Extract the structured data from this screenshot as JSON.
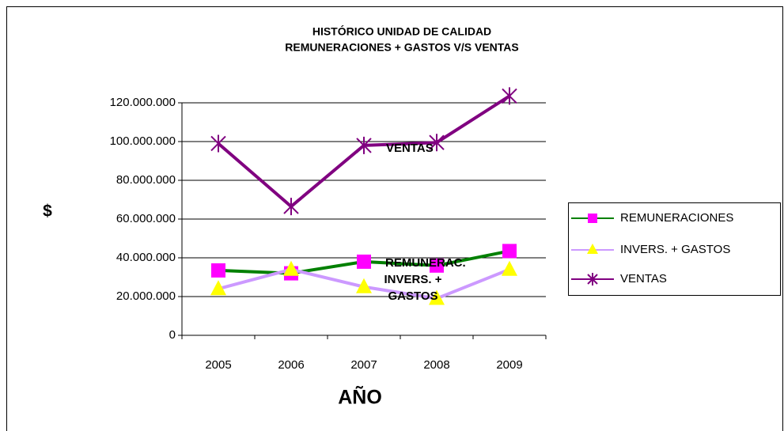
{
  "chart_data": {
    "type": "line",
    "title": [
      "HISTÓRICO UNIDAD DE CALIDAD",
      "REMUNERACIONES + GASTOS V/S VENTAS"
    ],
    "y_label": "$",
    "x_label": "AÑO",
    "categories": [
      "2005",
      "2006",
      "2007",
      "2008",
      "2009"
    ],
    "series": [
      {
        "name": "REMUNERACIONES",
        "color": "#008000",
        "marker": "square",
        "marker_color": "#ff00ff",
        "values": [
          33500000,
          32000000,
          38000000,
          36000000,
          43500000
        ]
      },
      {
        "name": "INVERS. + GASTOS",
        "color": "#cc99ff",
        "marker": "triangle",
        "marker_color": "#ffff00",
        "values": [
          24000000,
          34000000,
          25000000,
          19000000,
          34000000
        ]
      },
      {
        "name": "VENTAS",
        "color": "#800080",
        "marker": "star",
        "marker_color": "#800080",
        "values": [
          99000000,
          66500000,
          98000000,
          99500000,
          123500000
        ]
      }
    ],
    "annotations": [
      [
        "VENTAS"
      ],
      [
        "REMUNERAC."
      ],
      [
        "INVERS. +",
        "GASTOS"
      ]
    ],
    "ylim": [
      0,
      120000000
    ],
    "yticks": [
      0,
      {
        "value": 20000000,
        "label": "20.000.000"
      },
      {
        "value": 40000000,
        "label": "40.000.000"
      },
      {
        "value": 60000000,
        "label": "60.000.000"
      },
      {
        "value": 80000000,
        "label": "80.000.000"
      },
      {
        "value": 100000000,
        "label": "100.000.000"
      },
      {
        "value": 120000000,
        "label": "120.000.000"
      }
    ],
    "grid": true,
    "legend": "right"
  }
}
